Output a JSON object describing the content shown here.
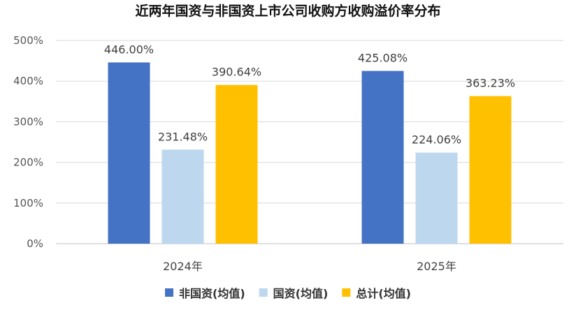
{
  "chart_data": {
    "type": "bar",
    "title": "近两年国资与非国资上市公司收购方收购溢价率分布",
    "categories": [
      "2024年",
      "2025年"
    ],
    "series": [
      {
        "name": "非国资(均值)",
        "color": "#4472C4",
        "values": [
          446.0,
          425.08
        ],
        "labels": [
          "446.00%",
          "425.08%"
        ]
      },
      {
        "name": "国资(均值)",
        "color": "#BDD7EE",
        "values": [
          231.48,
          224.06
        ],
        "labels": [
          "231.48%",
          "224.06%"
        ]
      },
      {
        "name": "总计(均值)",
        "color": "#FFC000",
        "values": [
          390.64,
          363.23
        ],
        "labels": [
          "390.64%",
          "363.23%"
        ]
      }
    ],
    "ylim": [
      0,
      500
    ],
    "yticks": [
      0,
      100,
      200,
      300,
      400,
      500
    ],
    "ytick_labels": [
      "0%",
      "100%",
      "200%",
      "300%",
      "400%",
      "500%"
    ],
    "grid": true,
    "legend_position": "bottom"
  }
}
